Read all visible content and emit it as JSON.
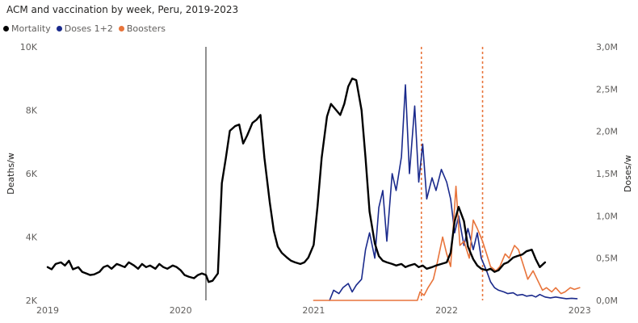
{
  "title": "ACM and vaccination by week, Peru, 2019-2023",
  "legend": [
    {
      "label": "Mortality",
      "color": "#000000"
    },
    {
      "label": "Doses 1+2",
      "color": "#1a2a8c"
    },
    {
      "label": "Boosters",
      "color": "#e8743b"
    }
  ],
  "chart_data": {
    "type": "line",
    "title": "ACM and vaccination by week, Peru, 2019-2023",
    "ylabel": "Deaths/w",
    "y2label": "Doses/w",
    "x_ticks": [
      "2019",
      "2020",
      "2021",
      "2022",
      "2023"
    ],
    "y_ticks": [
      "2K",
      "4K",
      "6K",
      "8K",
      "10K"
    ],
    "y2_ticks": [
      "0,0M",
      "0,5M",
      "1,0M",
      "1,5M",
      "2,0M",
      "2,5M",
      "3,0M"
    ],
    "xlim": [
      2019.0,
      2023.05
    ],
    "ylim": [
      2000,
      10000
    ],
    "y2lim": [
      0,
      3000000
    ],
    "grid": false,
    "legend_position": "top-left",
    "reference_lines": [
      {
        "x": 2020.19,
        "color": "#555555",
        "style": "solid"
      },
      {
        "x": 2021.81,
        "color": "#e8743b",
        "style": "dotted"
      },
      {
        "x": 2022.27,
        "color": "#e8743b",
        "style": "dotted"
      }
    ],
    "series": [
      {
        "name": "Mortality",
        "axis": "left",
        "color": "#000000",
        "x": [
          2019.0,
          2019.03,
          2019.06,
          2019.1,
          2019.13,
          2019.16,
          2019.19,
          2019.23,
          2019.26,
          2019.29,
          2019.32,
          2019.35,
          2019.39,
          2019.42,
          2019.45,
          2019.48,
          2019.52,
          2019.55,
          2019.58,
          2019.61,
          2019.65,
          2019.68,
          2019.71,
          2019.74,
          2019.77,
          2019.81,
          2019.84,
          2019.87,
          2019.9,
          2019.94,
          2019.97,
          2020.0,
          2020.03,
          2020.06,
          2020.1,
          2020.13,
          2020.16,
          2020.19,
          2020.21,
          2020.24,
          2020.28,
          2020.31,
          2020.34,
          2020.37,
          2020.41,
          2020.44,
          2020.47,
          2020.5,
          2020.54,
          2020.57,
          2020.6,
          2020.63,
          2020.67,
          2020.7,
          2020.73,
          2020.76,
          2020.8,
          2020.83,
          2020.86,
          2020.9,
          2020.93,
          2020.96,
          2021.0,
          2021.03,
          2021.06,
          2021.1,
          2021.13,
          2021.16,
          2021.2,
          2021.23,
          2021.26,
          2021.29,
          2021.32,
          2021.36,
          2021.39,
          2021.42,
          2021.46,
          2021.49,
          2021.52,
          2021.55,
          2021.59,
          2021.62,
          2021.66,
          2021.69,
          2021.72,
          2021.76,
          2021.79,
          2021.82,
          2021.85,
          2021.89,
          2021.92,
          2021.96,
          2022.0,
          2022.03,
          2022.06,
          2022.09,
          2022.13,
          2022.16,
          2022.2,
          2022.23,
          2022.26,
          2022.3,
          2022.33,
          2022.36,
          2022.39,
          2022.43,
          2022.46,
          2022.5,
          2022.53,
          2022.57,
          2022.6,
          2022.64,
          2022.67,
          2022.7,
          2022.74
        ],
        "values": [
          3050,
          2980,
          3150,
          3200,
          3100,
          3250,
          2980,
          3050,
          2900,
          2850,
          2800,
          2820,
          2900,
          3050,
          3100,
          3000,
          3150,
          3100,
          3050,
          3200,
          3100,
          3000,
          3150,
          3050,
          3100,
          3000,
          3150,
          3050,
          3000,
          3100,
          3050,
          2950,
          2800,
          2750,
          2700,
          2800,
          2850,
          2800,
          2580,
          2620,
          2850,
          5700,
          6500,
          7350,
          7500,
          7550,
          6950,
          7200,
          7600,
          7700,
          7850,
          6500,
          5100,
          4200,
          3700,
          3500,
          3350,
          3250,
          3200,
          3150,
          3200,
          3350,
          3750,
          5000,
          6500,
          7800,
          8200,
          8050,
          7850,
          8200,
          8750,
          9000,
          8950,
          8000,
          6500,
          4800,
          3800,
          3400,
          3250,
          3200,
          3150,
          3100,
          3150,
          3050,
          3100,
          3150,
          3050,
          3100,
          3000,
          3050,
          3100,
          3150,
          3200,
          3500,
          4500,
          4950,
          4500,
          3700,
          3300,
          3100,
          3000,
          2950,
          3000,
          2900,
          2950,
          3150,
          3200,
          3350,
          3400,
          3450,
          3550,
          3600,
          3300,
          3050,
          3200
        ]
      },
      {
        "name": "Doses 1+2",
        "axis": "right",
        "color": "#1a2a8c",
        "x": [
          2021.12,
          2021.15,
          2021.19,
          2021.22,
          2021.26,
          2021.29,
          2021.32,
          2021.36,
          2021.39,
          2021.42,
          2021.46,
          2021.49,
          2021.52,
          2021.55,
          2021.59,
          2021.62,
          2021.66,
          2021.69,
          2021.72,
          2021.76,
          2021.79,
          2021.82,
          2021.85,
          2021.89,
          2021.92,
          2021.96,
          2022.0,
          2022.03,
          2022.06,
          2022.09,
          2022.13,
          2022.16,
          2022.2,
          2022.23,
          2022.26,
          2022.3,
          2022.33,
          2022.36,
          2022.39,
          2022.43,
          2022.46,
          2022.5,
          2022.53,
          2022.57,
          2022.6,
          2022.64,
          2022.67,
          2022.7,
          2022.74,
          2022.78,
          2022.82,
          2022.86,
          2022.9,
          2022.94,
          2022.98
        ],
        "values": [
          0,
          120000,
          80000,
          150000,
          200000,
          100000,
          180000,
          250000,
          600000,
          800000,
          500000,
          1100000,
          1300000,
          700000,
          1500000,
          1300000,
          1700000,
          2550000,
          1500000,
          2300000,
          1400000,
          1850000,
          1200000,
          1450000,
          1300000,
          1550000,
          1400000,
          1200000,
          800000,
          1000000,
          650000,
          850000,
          600000,
          800000,
          500000,
          350000,
          220000,
          150000,
          120000,
          100000,
          80000,
          90000,
          60000,
          70000,
          50000,
          60000,
          40000,
          70000,
          40000,
          30000,
          40000,
          30000,
          20000,
          25000,
          20000
        ]
      },
      {
        "name": "Boosters",
        "axis": "right",
        "color": "#e8743b",
        "x": [
          2021.0,
          2021.4,
          2021.78,
          2021.8,
          2021.83,
          2021.86,
          2021.9,
          2021.93,
          2021.97,
          2022.0,
          2022.03,
          2022.07,
          2022.1,
          2022.13,
          2022.17,
          2022.2,
          2022.23,
          2022.27,
          2022.3,
          2022.33,
          2022.37,
          2022.4,
          2022.44,
          2022.47,
          2022.51,
          2022.54,
          2022.58,
          2022.61,
          2022.65,
          2022.68,
          2022.72,
          2022.75,
          2022.79,
          2022.82,
          2022.86,
          2022.89,
          2022.93,
          2022.96,
          2023.0
        ],
        "values": [
          0,
          0,
          0,
          100000,
          60000,
          150000,
          250000,
          450000,
          750000,
          550000,
          400000,
          1350000,
          650000,
          700000,
          500000,
          950000,
          850000,
          700000,
          550000,
          400000,
          350000,
          400000,
          550000,
          500000,
          650000,
          600000,
          400000,
          250000,
          350000,
          250000,
          120000,
          150000,
          100000,
          150000,
          80000,
          100000,
          150000,
          130000,
          150000
        ]
      }
    ]
  }
}
